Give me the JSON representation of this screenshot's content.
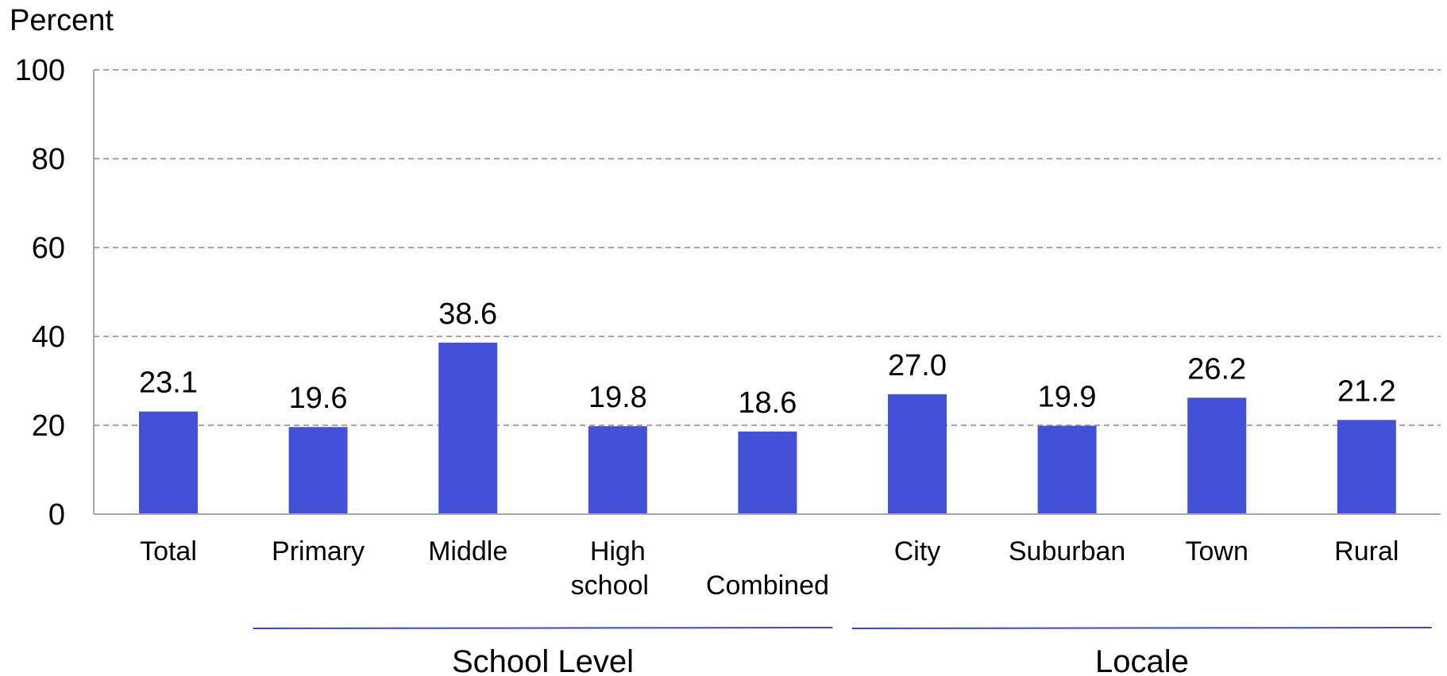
{
  "chart_data": {
    "type": "bar",
    "ylabel": "Percent",
    "ylim": [
      0,
      100
    ],
    "yticks": [
      "0",
      "20",
      "40",
      "60",
      "80",
      "100"
    ],
    "grid": true,
    "bar_color": "#4350d8",
    "group_line_color": "#3a49c9",
    "categories": [
      [
        "Total"
      ],
      [
        "Primary"
      ],
      [
        "Middle"
      ],
      [
        "High",
        "school"
      ],
      [
        "Combined"
      ],
      [
        "City"
      ],
      [
        "Suburban"
      ],
      [
        "Town"
      ],
      [
        "Rural"
      ]
    ],
    "values": [
      23.1,
      19.6,
      38.6,
      19.8,
      18.6,
      27.0,
      19.9,
      26.2,
      21.2
    ],
    "value_labels": [
      "23.1",
      "19.6",
      "38.6",
      "19.8",
      "18.6",
      "27.0",
      "19.9",
      "26.2",
      "21.2"
    ],
    "groups": [
      {
        "label": "School Level",
        "first": 1,
        "last": 4
      },
      {
        "label": "Locale",
        "first": 5,
        "last": 8
      }
    ]
  }
}
